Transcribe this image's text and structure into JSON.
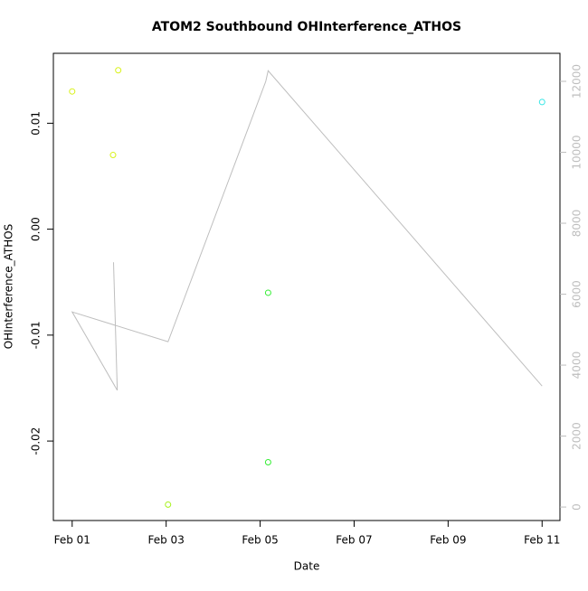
{
  "chart_data": {
    "type": "scatter",
    "title": "ATOM2 Southbound OHInterference_ATHOS",
    "xlabel": "Date",
    "ylabel": "OHInterference_ATHOS",
    "x": [
      1.0,
      1.98,
      1.87,
      3.04,
      5.17,
      5.17,
      11.0
    ],
    "values": [
      0.013,
      0.015,
      0.007,
      -0.026,
      -0.006,
      -0.022,
      0.012
    ],
    "colors": [
      "#d9f21a",
      "#d9f21a",
      "#d9f21a",
      "#a6f21a",
      "#33ee33",
      "#33ee33",
      "#33e6e6"
    ],
    "xlim": [
      0.6,
      11.38
    ],
    "ylim": [
      -0.0275,
      0.0166
    ],
    "xticks": [
      {
        "value": 1,
        "label": "Feb 01"
      },
      {
        "value": 3,
        "label": "Feb 03"
      },
      {
        "value": 5,
        "label": "Feb 05"
      },
      {
        "value": 7,
        "label": "Feb 07"
      },
      {
        "value": 9,
        "label": "Feb 09"
      },
      {
        "value": 11,
        "label": "Feb 11"
      }
    ],
    "yticks": [
      0.01,
      {
        "value": 0,
        "label": "0.00"
      },
      -0.01,
      -0.02
    ],
    "line_series": {
      "axis": "y2",
      "color": "#bebebe",
      "x": [
        1.88,
        1.96,
        1.0,
        3.04,
        5.12,
        5.17,
        11.0
      ],
      "values": [
        6900,
        3290,
        5500,
        4660,
        12000,
        12300,
        3410
      ]
    },
    "y2lim": [
      -380,
      12790
    ],
    "y2ticks": [
      0,
      2000,
      4000,
      6000,
      8000,
      10000,
      12000
    ],
    "y2tick_color": "#bebebe"
  }
}
